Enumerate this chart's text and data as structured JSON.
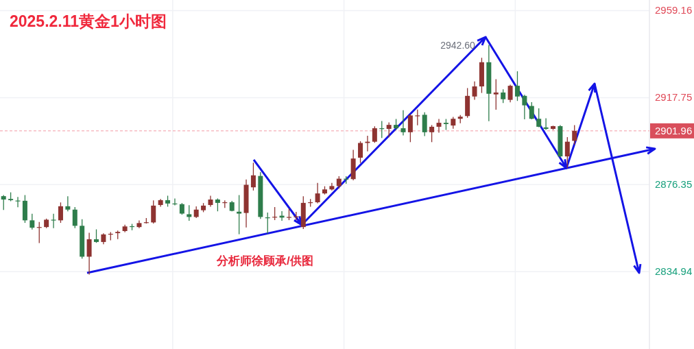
{
  "chart_data": {
    "type": "candlestick",
    "title": "2025.2.11黄金1小时图",
    "categories": [
      null,
      null,
      null,
      null,
      null,
      null,
      null,
      null,
      null,
      null,
      null,
      null,
      null,
      null,
      null,
      null,
      null,
      null,
      null,
      null,
      null,
      null,
      null,
      null,
      null,
      null,
      null,
      null,
      null,
      null,
      null,
      null,
      null,
      null,
      null,
      null,
      null,
      null,
      null,
      null,
      null,
      null,
      null,
      null,
      null,
      null,
      null,
      null,
      null,
      null,
      null,
      null,
      null,
      null,
      null,
      null,
      null,
      null,
      null,
      null,
      null,
      null,
      null,
      null,
      null,
      null,
      null,
      null,
      null,
      null,
      null,
      null,
      null,
      null,
      null,
      null,
      null,
      null,
      null,
      null,
      null,
      null,
      null,
      null,
      null,
      null,
      null,
      null,
      null,
      null,
      null
    ],
    "ohlc": [
      [
        2870.9,
        2871.2,
        2864.5,
        2869.3
      ],
      [
        2869.6,
        2872.5,
        2868.7,
        2869.0
      ],
      [
        2868.8,
        2870.3,
        2865.8,
        2868.6
      ],
      [
        2868.7,
        2871.2,
        2858.4,
        2859.4
      ],
      [
        2859.4,
        2862.3,
        2855.2,
        2855.9
      ],
      [
        2855.9,
        2858.4,
        2848.8,
        2856.2
      ],
      [
        2856.2,
        2860.0,
        2855.9,
        2859.7
      ],
      [
        2859.7,
        2862.3,
        2855.9,
        2859.4
      ],
      [
        2859.4,
        2867.7,
        2858.4,
        2866.1
      ],
      [
        2866.1,
        2870.6,
        2863.9,
        2864.5
      ],
      [
        2864.5,
        2865.5,
        2855.9,
        2856.8
      ],
      [
        2856.8,
        2859.7,
        2841.4,
        2842.1
      ],
      [
        2842.1,
        2853.3,
        2833.8,
        2850.4
      ],
      [
        2850.4,
        2854.9,
        2848.9,
        2849.1
      ],
      [
        2849.1,
        2853.0,
        2848.2,
        2852.7
      ],
      [
        2852.7,
        2853.6,
        2850.1,
        2853.0
      ],
      [
        2853.3,
        2854.3,
        2850.7,
        2853.9
      ],
      [
        2854.3,
        2857.1,
        2853.9,
        2856.5
      ],
      [
        2856.6,
        2857.5,
        2854.9,
        2856.4
      ],
      [
        2856.2,
        2859.1,
        2855.9,
        2858.1
      ],
      [
        2858.1,
        2860.3,
        2858.1,
        2858.5
      ],
      [
        2858.4,
        2868.7,
        2858.1,
        2866.4
      ],
      [
        2866.7,
        2869.3,
        2866.1,
        2869.0
      ],
      [
        2869.0,
        2870.9,
        2866.1,
        2867.4
      ],
      [
        2867.4,
        2869.6,
        2866.7,
        2867.2
      ],
      [
        2867.1,
        2867.4,
        2862.3,
        2862.6
      ],
      [
        2862.3,
        2866.4,
        2859.4,
        2861.0
      ],
      [
        2861.0,
        2865.8,
        2860.7,
        2864.5
      ],
      [
        2864.2,
        2867.4,
        2863.5,
        2866.4
      ],
      [
        2866.7,
        2870.9,
        2866.1,
        2869.3
      ],
      [
        2869.3,
        2869.6,
        2863.9,
        2867.7
      ],
      [
        2867.7,
        2868.7,
        2865.5,
        2868.0
      ],
      [
        2868.0,
        2868.4,
        2863.9,
        2863.9
      ],
      [
        2863.5,
        2871.2,
        2853.0,
        2862.6
      ],
      [
        2862.9,
        2878.6,
        2856.2,
        2876.3
      ],
      [
        2875.1,
        2886.6,
        2873.8,
        2880.8
      ],
      [
        2880.5,
        2882.1,
        2860.3,
        2861.0
      ],
      [
        2860.8,
        2862.9,
        2853.3,
        2860.6
      ],
      [
        2860.9,
        2865.5,
        2859.7,
        2861.1
      ],
      [
        2861.6,
        2863.5,
        2859.4,
        2860.7
      ],
      [
        2860.7,
        2864.8,
        2859.7,
        2861.0
      ],
      [
        2861.1,
        2863.2,
        2859.7,
        2861.3
      ],
      [
        2856.2,
        2870.6,
        2855.5,
        2867.7
      ],
      [
        2867.7,
        2869.3,
        2866.1,
        2868.0
      ],
      [
        2868.0,
        2877.0,
        2867.7,
        2872.2
      ],
      [
        2872.2,
        2875.4,
        2871.9,
        2874.1
      ],
      [
        2874.1,
        2877.0,
        2873.8,
        2875.7
      ],
      [
        2875.7,
        2880.2,
        2874.7,
        2879.2
      ],
      [
        2879.2,
        2880.2,
        2877.0,
        2879.0
      ],
      [
        2879.0,
        2892.7,
        2878.6,
        2888.8
      ],
      [
        2889.2,
        2896.8,
        2886.9,
        2896.2
      ],
      [
        2896.2,
        2899.4,
        2892.4,
        2896.8
      ],
      [
        2896.8,
        2903.9,
        2896.5,
        2903.2
      ],
      [
        2903.2,
        2906.4,
        2898.8,
        2903.0
      ],
      [
        2902.9,
        2905.8,
        2899.1,
        2904.8
      ],
      [
        2904.8,
        2907.4,
        2902.6,
        2903.2
      ],
      [
        2903.2,
        2911.6,
        2900.0,
        2901.3
      ],
      [
        2901.3,
        2909.6,
        2896.8,
        2909.3
      ],
      [
        2909.0,
        2911.9,
        2904.8,
        2909.3
      ],
      [
        2909.6,
        2910.6,
        2899.7,
        2901.3
      ],
      [
        2901.3,
        2904.5,
        2896.8,
        2903.9
      ],
      [
        2903.9,
        2907.4,
        2901.3,
        2905.8
      ],
      [
        2905.8,
        2907.4,
        2902.6,
        2905.2
      ],
      [
        2904.5,
        2908.4,
        2903.2,
        2907.7
      ],
      [
        2907.7,
        2909.3,
        2905.8,
        2908.7
      ],
      [
        2909.0,
        2922.1,
        2908.4,
        2918.6
      ],
      [
        2918.3,
        2925.3,
        2917.0,
        2923.1
      ],
      [
        2923.1,
        2936.5,
        2920.2,
        2934.6
      ],
      [
        2934.6,
        2942.6,
        2906.8,
        2919.6
      ],
      [
        2919.3,
        2926.3,
        2912.2,
        2920.2
      ],
      [
        2920.2,
        2921.5,
        2915.4,
        2917.0
      ],
      [
        2916.7,
        2923.7,
        2915.7,
        2923.4
      ],
      [
        2923.4,
        2930.1,
        2916.4,
        2918.3
      ],
      [
        2918.6,
        2918.9,
        2907.7,
        2914.1
      ],
      [
        2913.8,
        2915.4,
        2907.7,
        2907.7
      ],
      [
        2907.7,
        2912.5,
        2903.9,
        2903.9
      ],
      [
        2903.6,
        2907.7,
        2902.6,
        2902.9
      ],
      [
        2902.9,
        2904.2,
        2902.6,
        2904.2
      ],
      [
        2904.2,
        2904.5,
        2889.5,
        2889.8
      ],
      [
        2889.8,
        2898.8,
        2884.4,
        2896.8
      ],
      [
        2897.2,
        2904.5,
        2895.6,
        2901.96
      ],
      null,
      null,
      null,
      null,
      null,
      null,
      null,
      null,
      null,
      null
    ],
    "ylim": [
      2798.2,
      2964.2
    ],
    "yticks": [
      2834.94,
      2876.35,
      2917.75,
      2959.16
    ],
    "grid": true,
    "ref_lines": [
      {
        "axis": "y",
        "value": 2901.96,
        "label": "2901.96",
        "color": "#f29aa4",
        "line_style": "dashed"
      }
    ],
    "annotations": [
      "2942.60",
      "分析师徐顾承/供图"
    ]
  }
}
